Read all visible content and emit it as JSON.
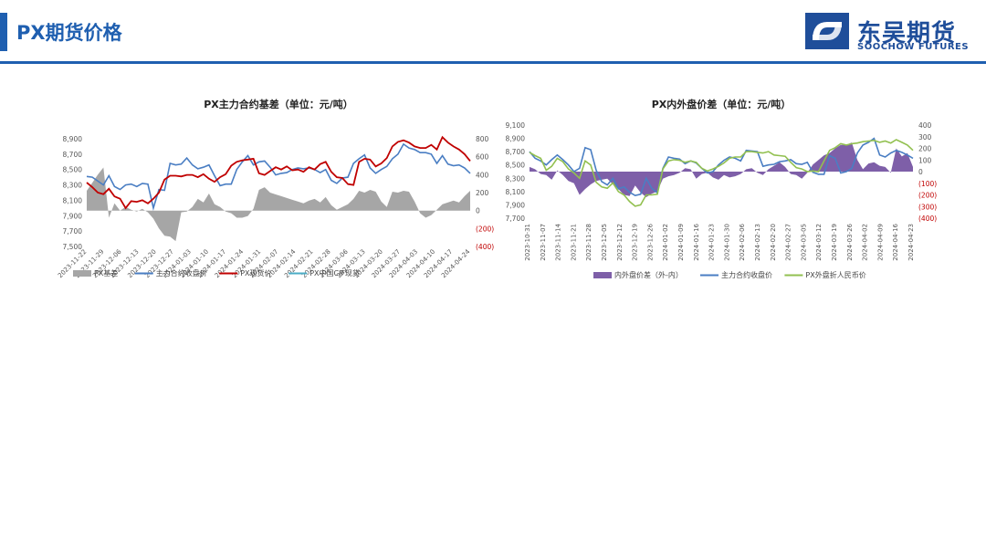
{
  "page": {
    "title": "PX期货价格",
    "logo_cn": "东吴期货",
    "logo_en": "SOOCHOW FUTURES"
  },
  "colors": {
    "brand": "#1f5fb0",
    "basis_area": "#a6a6a6",
    "futures_line": "#4a7ec3",
    "spot_line": "#c00000",
    "cif_line": "#4bacc6",
    "spread_area": "#7e5fa8",
    "external_line": "#92c050",
    "neg_axis": "#c00000"
  },
  "chart_data": [
    {
      "type": "line",
      "title": "PX主力合约基差（单位：元/吨）",
      "x_ticks": [
        "2023-11-22",
        "2023-11-29",
        "2023-12-06",
        "2023-12-13",
        "2023-12-20",
        "2023-12-27",
        "2024-01-03",
        "2024-01-10",
        "2024-01-17",
        "2024-01-24",
        "2024-01-31",
        "2024-02-07",
        "2024-02-14",
        "2024-02-21",
        "2024-02-28",
        "2024-03-06",
        "2024-03-13",
        "2024-03-20",
        "2024-03-27",
        "2024-04-03",
        "2024-04-10",
        "2024-04-17",
        "2024-04-24"
      ],
      "y_left": {
        "min": 7500,
        "max": 8900,
        "ticks": [
          "8,900",
          "8,700",
          "8,500",
          "8,300",
          "8,100",
          "7,900",
          "7,700",
          "7,500"
        ]
      },
      "y_right": {
        "min": -400,
        "max": 800,
        "ticks": [
          "800",
          "600",
          "400",
          "200",
          "0",
          "(200)",
          "(400)"
        ]
      },
      "legend": [
        "PX基差",
        "主力合约收盘价",
        "PX现货价",
        "PX中国CIF现货"
      ],
      "series": [
        {
          "name": "PX基差",
          "kind": "area",
          "axis": "right",
          "values": [
            220,
            310,
            400,
            480,
            -80,
            80,
            0,
            40,
            10,
            -10,
            20,
            -20,
            -90,
            -200,
            -280,
            -290,
            -340,
            -20,
            -10,
            40,
            130,
            90,
            190,
            70,
            40,
            -10,
            -30,
            -80,
            -80,
            -60,
            20,
            230,
            260,
            200,
            180,
            160,
            140,
            120,
            100,
            80,
            110,
            130,
            90,
            150,
            60,
            10,
            40,
            70,
            130,
            220,
            200,
            230,
            210,
            100,
            40,
            210,
            200,
            220,
            210,
            100,
            -30,
            -80,
            -50,
            10,
            70,
            90,
            110,
            90,
            160,
            220
          ]
        },
        {
          "name": "主力合约收盘价",
          "kind": "line",
          "axis": "left",
          "values": [
            8410,
            8400,
            8350,
            8300,
            8420,
            8280,
            8240,
            8300,
            8310,
            8280,
            8320,
            8310,
            8000,
            8240,
            8230,
            8580,
            8560,
            8570,
            8650,
            8560,
            8510,
            8530,
            8560,
            8420,
            8290,
            8310,
            8310,
            8500,
            8600,
            8680,
            8560,
            8600,
            8610,
            8530,
            8430,
            8450,
            8460,
            8500,
            8520,
            8510,
            8520,
            8500,
            8460,
            8500,
            8360,
            8320,
            8390,
            8400,
            8580,
            8640,
            8690,
            8520,
            8450,
            8500,
            8540,
            8640,
            8700,
            8830,
            8780,
            8760,
            8720,
            8720,
            8700,
            8580,
            8680,
            8570,
            8550,
            8560,
            8520,
            8450
          ]
        },
        {
          "name": "PX现货价",
          "kind": "line",
          "axis": "left",
          "values": [
            8330,
            8270,
            8200,
            8180,
            8250,
            8150,
            8120,
            8000,
            8090,
            8080,
            8100,
            8060,
            8120,
            8200,
            8370,
            8420,
            8420,
            8410,
            8430,
            8430,
            8400,
            8440,
            8380,
            8340,
            8400,
            8440,
            8550,
            8600,
            8620,
            8630,
            8640,
            8450,
            8430,
            8480,
            8530,
            8500,
            8540,
            8490,
            8500,
            8470,
            8530,
            8500,
            8570,
            8600,
            8470,
            8400,
            8390,
            8310,
            8300,
            8600,
            8640,
            8630,
            8540,
            8580,
            8650,
            8800,
            8860,
            8880,
            8850,
            8800,
            8780,
            8780,
            8820,
            8760,
            8920,
            8850,
            8800,
            8760,
            8700,
            8610
          ]
        }
      ]
    },
    {
      "type": "line",
      "title": "PX内外盘价差（单位：元/吨）",
      "x_ticks": [
        "2023-10-31",
        "2023-11-07",
        "2023-11-14",
        "2023-11-21",
        "2023-11-28",
        "2023-12-05",
        "2023-12-12",
        "2023-12-19",
        "2023-12-26",
        "2024-01-02",
        "2024-01-09",
        "2024-01-16",
        "2024-01-23",
        "2024-01-30",
        "2024-02-06",
        "2024-02-13",
        "2024-02-20",
        "2024-02-27",
        "2024-03-05",
        "2024-03-12",
        "2024-03-19",
        "2024-03-26",
        "2024-04-02",
        "2024-04-09",
        "2024-04-16",
        "2024-04-23"
      ],
      "y_left": {
        "min": 7700,
        "max": 9100,
        "ticks": [
          "9,100",
          "8,900",
          "8,700",
          "8,500",
          "8,300",
          "8,100",
          "7,900",
          "7,700"
        ]
      },
      "y_right": {
        "min": -400,
        "max": 400,
        "ticks": [
          "400",
          "300",
          "200",
          "100",
          "0",
          "(100)",
          "(200)",
          "(300)",
          "(400)"
        ]
      },
      "legend": [
        "内外盘价差（外-内）",
        "主力合约收盘价",
        "PX外盘折人民币价"
      ],
      "series": [
        {
          "name": "内外盘价差（外-内）",
          "kind": "area",
          "axis": "right",
          "values": [
            40,
            20,
            -20,
            -30,
            -70,
            10,
            -30,
            -80,
            -100,
            -200,
            -150,
            -110,
            -80,
            -70,
            -60,
            -110,
            -150,
            -200,
            -210,
            -120,
            -180,
            -220,
            -190,
            -170,
            -60,
            -40,
            -30,
            -10,
            30,
            20,
            -60,
            -20,
            -10,
            -50,
            -70,
            -30,
            -50,
            -40,
            -20,
            20,
            30,
            -10,
            -30,
            20,
            50,
            80,
            40,
            -20,
            -30,
            -60,
            -10,
            60,
            100,
            140,
            160,
            200,
            230,
            230,
            250,
            100,
            20,
            70,
            80,
            50,
            40,
            -10,
            200,
            130,
            160,
            40
          ]
        },
        {
          "name": "主力合约收盘价",
          "kind": "line",
          "axis": "left",
          "values": [
            8700,
            8600,
            8560,
            8500,
            8580,
            8650,
            8580,
            8500,
            8400,
            8450,
            8760,
            8730,
            8420,
            8250,
            8200,
            8300,
            8140,
            8170,
            8090,
            8040,
            8060,
            8300,
            8150,
            8080,
            8450,
            8620,
            8600,
            8590,
            8520,
            8560,
            8530,
            8450,
            8380,
            8400,
            8500,
            8570,
            8620,
            8600,
            8560,
            8720,
            8710,
            8700,
            8480,
            8500,
            8510,
            8550,
            8560,
            8580,
            8520,
            8510,
            8540,
            8390,
            8360,
            8360,
            8640,
            8600,
            8380,
            8400,
            8450,
            8680,
            8800,
            8840,
            8900,
            8650,
            8620,
            8680,
            8720,
            8690,
            8650,
            8600
          ]
        },
        {
          "name": "PX外盘折人民币价",
          "kind": "line",
          "axis": "left",
          "values": [
            8690,
            8640,
            8600,
            8420,
            8480,
            8600,
            8550,
            8440,
            8380,
            8300,
            8560,
            8500,
            8240,
            8170,
            8150,
            8230,
            8100,
            8050,
            7950,
            7880,
            7900,
            8050,
            8050,
            8060,
            8440,
            8560,
            8580,
            8570,
            8540,
            8560,
            8540,
            8450,
            8410,
            8440,
            8480,
            8530,
            8600,
            8620,
            8620,
            8700,
            8700,
            8690,
            8680,
            8700,
            8650,
            8640,
            8630,
            8540,
            8460,
            8440,
            8400,
            8410,
            8400,
            8560,
            8720,
            8760,
            8820,
            8800,
            8820,
            8830,
            8850,
            8860,
            8870,
            8840,
            8860,
            8830,
            8880,
            8840,
            8800,
            8720
          ]
        }
      ]
    }
  ]
}
